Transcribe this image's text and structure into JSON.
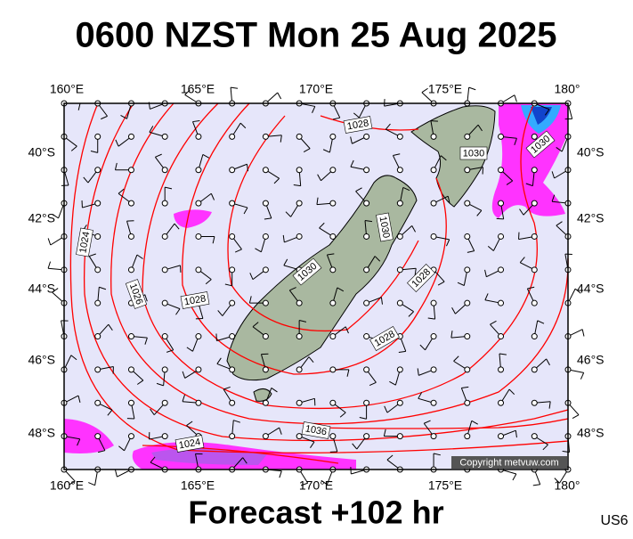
{
  "title": "0600 NZST Mon 25 Aug 2025",
  "lon_labels": [
    "160°E",
    "165°E",
    "170°E",
    "175°E",
    "180°"
  ],
  "lat_labels": [
    "40°S",
    "42°S",
    "44°S",
    "46°S",
    "48°S"
  ],
  "contour_labels": [
    "1028",
    "1030",
    "1030",
    "1024",
    "1026",
    "1028",
    "1030",
    "1030",
    "1028",
    "1028",
    "1036",
    "1024"
  ],
  "copyright": "Copyright metvuw.com",
  "forecast": "Forecast +102 hr",
  "code": "US6"
}
